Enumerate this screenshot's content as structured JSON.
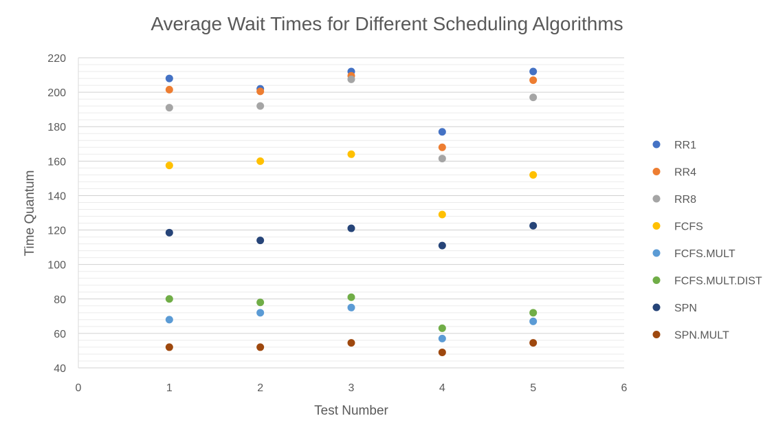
{
  "chart_data": {
    "type": "scatter",
    "title": "Average Wait Times for Different Scheduling Algorithms",
    "xlabel": "Test Number",
    "ylabel": "Time Quantum",
    "xlim": [
      0,
      6
    ],
    "ylim": [
      40,
      220
    ],
    "x_ticks": [
      0,
      1,
      2,
      3,
      4,
      5,
      6
    ],
    "y_ticks": [
      40,
      60,
      80,
      100,
      120,
      140,
      160,
      180,
      200,
      220
    ],
    "y_minor_step": 4,
    "grid": true,
    "legend_position": "right",
    "series": [
      {
        "name": "RR1",
        "color": "#4472C4",
        "x": [
          1,
          2,
          3,
          4,
          5
        ],
        "y": [
          208,
          202,
          212,
          177,
          212
        ]
      },
      {
        "name": "RR4",
        "color": "#ED7D31",
        "x": [
          1,
          2,
          3,
          4,
          5
        ],
        "y": [
          201.5,
          200.5,
          209.5,
          168,
          207
        ]
      },
      {
        "name": "RR8",
        "color": "#A5A5A5",
        "x": [
          1,
          2,
          3,
          4,
          5
        ],
        "y": [
          191,
          192,
          207.5,
          161.5,
          197
        ]
      },
      {
        "name": "FCFS",
        "color": "#FFC000",
        "x": [
          1,
          2,
          3,
          4,
          5
        ],
        "y": [
          157.5,
          160,
          164,
          129,
          152
        ]
      },
      {
        "name": "FCFS.MULT",
        "color": "#5B9BD5",
        "x": [
          1,
          2,
          3,
          4,
          5
        ],
        "y": [
          68,
          72,
          75,
          57,
          67
        ]
      },
      {
        "name": "FCFS.MULT.DIST",
        "color": "#70AD47",
        "x": [
          1,
          2,
          3,
          4,
          5
        ],
        "y": [
          80,
          78,
          81,
          63,
          72
        ]
      },
      {
        "name": "SPN",
        "color": "#264478",
        "x": [
          1,
          2,
          3,
          4,
          5
        ],
        "y": [
          118.5,
          114,
          121,
          111,
          122.5
        ]
      },
      {
        "name": "SPN.MULT",
        "color": "#9E480E",
        "x": [
          1,
          2,
          3,
          4,
          5
        ],
        "y": [
          52,
          52,
          54.5,
          49,
          54.5
        ]
      }
    ]
  }
}
